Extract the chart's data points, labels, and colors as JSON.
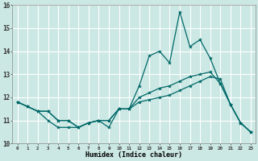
{
  "xlabel": "Humidex (Indice chaleur)",
  "ylabel": "",
  "background_color": "#cce8e4",
  "grid_color": "#ffffff",
  "line_color": "#006868",
  "x": [
    0,
    1,
    2,
    3,
    4,
    5,
    6,
    7,
    8,
    9,
    10,
    11,
    12,
    13,
    14,
    15,
    16,
    17,
    18,
    19,
    20,
    21,
    22,
    23
  ],
  "line1": [
    11.8,
    11.6,
    11.4,
    11.0,
    10.7,
    10.7,
    10.7,
    10.9,
    11.0,
    10.7,
    11.5,
    11.5,
    12.5,
    13.8,
    14.0,
    13.5,
    15.7,
    14.2,
    14.5,
    13.7,
    12.6,
    11.7,
    10.9,
    10.5
  ],
  "line2": [
    11.8,
    11.6,
    11.4,
    11.4,
    11.0,
    11.0,
    10.7,
    10.9,
    11.0,
    11.0,
    11.5,
    11.5,
    12.0,
    12.2,
    12.4,
    12.5,
    12.7,
    12.9,
    13.0,
    13.1,
    12.6,
    11.7,
    10.9,
    10.5
  ],
  "line3": [
    11.8,
    11.6,
    11.4,
    11.4,
    11.0,
    11.0,
    10.7,
    10.9,
    11.0,
    11.0,
    11.5,
    11.5,
    11.8,
    11.9,
    12.0,
    12.1,
    12.3,
    12.5,
    12.7,
    12.9,
    12.8,
    11.7,
    10.9,
    10.5
  ],
  "ylim": [
    10,
    16
  ],
  "xlim": [
    -0.5,
    23.5
  ],
  "yticks": [
    10,
    11,
    12,
    13,
    14,
    15,
    16
  ],
  "xtick_labels": [
    "0",
    "1",
    "2",
    "3",
    "4",
    "5",
    "6",
    "7",
    "8",
    "9",
    "10",
    "11",
    "12",
    "13",
    "14",
    "15",
    "16",
    "17",
    "18",
    "19",
    "20",
    "21",
    "22",
    "23"
  ]
}
